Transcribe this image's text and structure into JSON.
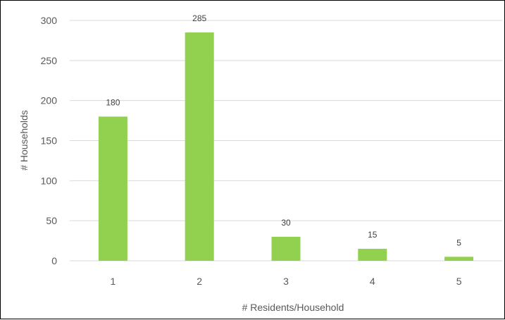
{
  "chart_data": {
    "type": "bar",
    "title": "",
    "xlabel": "# Residents/Household",
    "ylabel": "# Households",
    "categories": [
      "1",
      "2",
      "3",
      "4",
      "5"
    ],
    "values": [
      180,
      285,
      30,
      15,
      5
    ],
    "data_labels": [
      "180",
      "285",
      "30",
      "15",
      "5"
    ],
    "ylim": [
      0,
      300
    ],
    "yticks": [
      0,
      50,
      100,
      150,
      200,
      250,
      300
    ],
    "grid": "horizontal",
    "legend": "none",
    "bar_color": "#92d050",
    "gridline_color": "#d9d9d9",
    "text_color": "#595959"
  }
}
